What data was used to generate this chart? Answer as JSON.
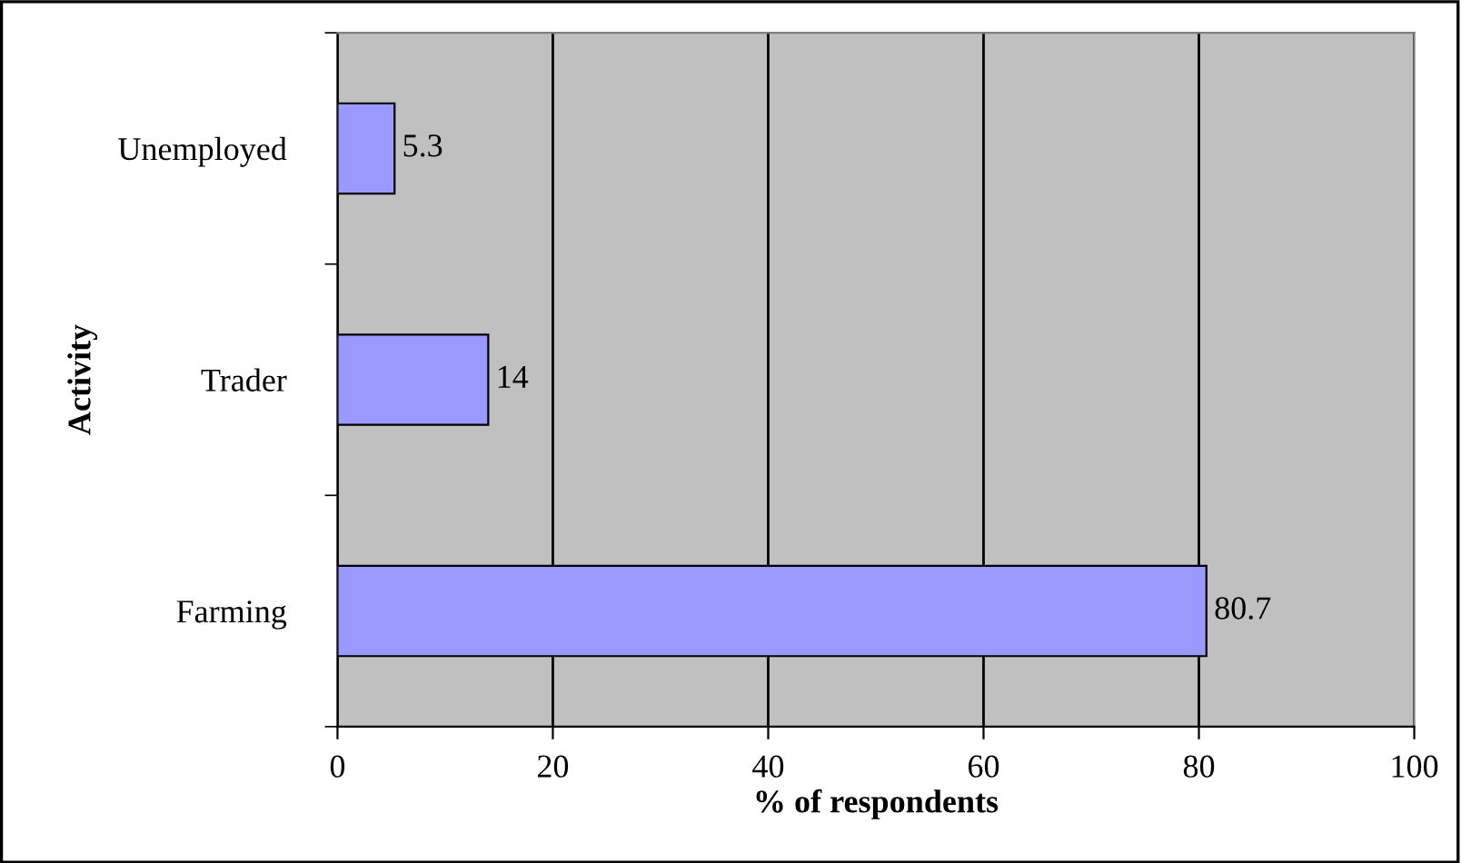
{
  "chart_data": {
    "type": "bar",
    "orientation": "horizontal",
    "xlabel": "% of respondents",
    "ylabel": "Activity",
    "categories": [
      "Unemployed",
      "Trader",
      "Farming"
    ],
    "values": [
      5.3,
      14,
      80.7
    ],
    "color": "#9999ff",
    "xlim": [
      0,
      100
    ],
    "xticks": [
      0,
      20,
      40,
      60,
      80,
      100
    ],
    "grid": "x",
    "data_labels": true
  }
}
